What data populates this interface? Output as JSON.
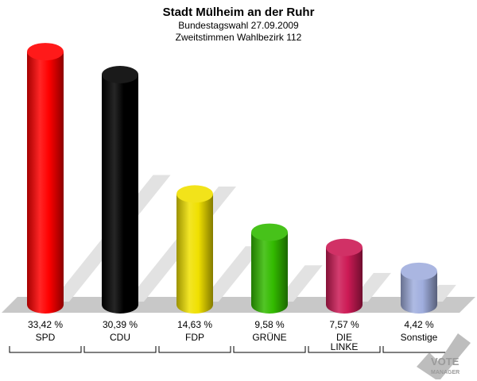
{
  "chart_data": {
    "type": "bar",
    "title": "Stadt Mülheim an der Ruhr",
    "subtitle_lines": [
      "Bundestagswahl 27.09.2009",
      "Zweitstimmen Wahlbezirk 112"
    ],
    "categories": [
      "SPD",
      "CDU",
      "FDP",
      "GRÜNE",
      "DIE LINKE",
      "Sonstige"
    ],
    "category_lines": [
      [
        "SPD"
      ],
      [
        "CDU"
      ],
      [
        "FDP"
      ],
      [
        "GRÜNE"
      ],
      [
        "DIE",
        "LINKE"
      ],
      [
        "Sonstige"
      ]
    ],
    "values": [
      33.42,
      30.39,
      14.63,
      9.58,
      7.57,
      4.42
    ],
    "value_labels": [
      "33,42 %",
      "30,39 %",
      "14,63 %",
      "9,58 %",
      "7,57 %",
      "4,42 %"
    ],
    "colors": [
      "#ff0000",
      "#000000",
      "#f0e000",
      "#33bb00",
      "#cc1a55",
      "#a0aede"
    ],
    "ylim": [
      0,
      35
    ],
    "grid": false,
    "legend": "none"
  },
  "logo": {
    "word1": "VOTE",
    "word2": "MANAGER"
  }
}
